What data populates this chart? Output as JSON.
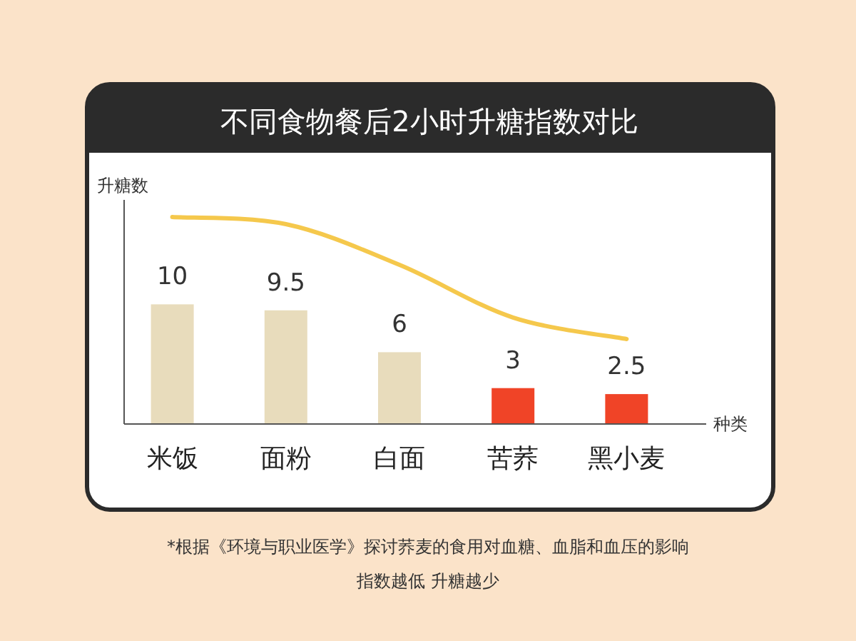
{
  "chart_data": {
    "type": "bar",
    "title": "不同食物餐后2小时升糖指数对比",
    "ylabel": "升糖数",
    "xlabel": "种类",
    "categories": [
      "米饭",
      "面粉",
      "白面",
      "苦荞",
      "黑小麦"
    ],
    "series": [
      {
        "values": [
          10,
          9.5,
          6,
          3,
          2.5
        ],
        "colors": [
          "#e8dcbc",
          "#e8dcbc",
          "#e8dcbc",
          "#f04427",
          "#f04427"
        ],
        "value_labels": [
          "10",
          "9.5",
          "6",
          "3",
          "2.5"
        ]
      },
      {
        "type": "line",
        "color": "#f5c84c",
        "values": [
          17.3,
          16.7,
          13.3,
          8.9,
          7.1
        ]
      }
    ],
    "annotations": [
      "*根据《环境与职业医学》探讨荞麦的食用对血糖、血脂和血压的影响",
      "指数越低 升糖越少"
    ]
  }
}
